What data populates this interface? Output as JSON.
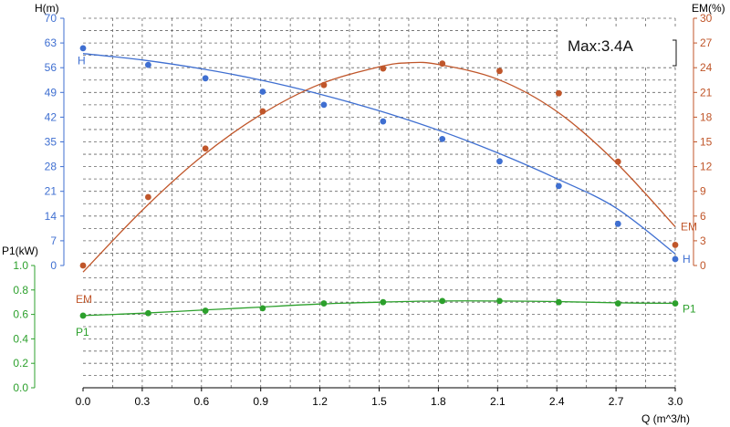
{
  "chart_data": {
    "type": "line",
    "annotation": "Max:3.4A",
    "grid": true,
    "x_axis": {
      "label": "Q (m^3/h)",
      "min": 0,
      "max": 3.0,
      "ticks": [
        "0.0",
        "0.3",
        "0.6",
        "0.9",
        "1.2",
        "1.5",
        "1.8",
        "2.1",
        "2.4",
        "2.7",
        "3.0"
      ],
      "color": "#000000"
    },
    "y_axes": {
      "H": {
        "label": "H(m)",
        "min": 0,
        "max": 70,
        "ticks": [
          "0",
          "7",
          "14",
          "21",
          "28",
          "35",
          "42",
          "49",
          "56",
          "63",
          "70"
        ],
        "color": "#3f6fd1"
      },
      "EM": {
        "label": "EM(%)",
        "min": 0,
        "max": 30,
        "ticks": [
          "0",
          "3",
          "6",
          "9",
          "12",
          "15",
          "18",
          "21",
          "24",
          "27",
          "30"
        ],
        "color": "#c0562a"
      },
      "P1": {
        "label": "P1(kW)",
        "min": 0,
        "max": 1.0,
        "ticks": [
          "0.0",
          "0.2",
          "0.4",
          "0.6",
          "0.8",
          "1.0"
        ],
        "color": "#2ca02c"
      }
    },
    "series": [
      {
        "name": "H",
        "axis": "H",
        "color": "#3f6fd1",
        "points": [
          [
            0.0,
            61.5
          ],
          [
            0.33,
            56.8
          ],
          [
            0.62,
            53.0
          ],
          [
            0.91,
            49.2
          ],
          [
            1.22,
            45.5
          ],
          [
            1.52,
            40.8
          ],
          [
            1.82,
            35.8
          ],
          [
            2.11,
            29.5
          ],
          [
            2.41,
            22.5
          ],
          [
            2.71,
            11.8
          ],
          [
            3.0,
            1.8
          ]
        ],
        "curve": [
          [
            0.0,
            60.0
          ],
          [
            0.3,
            58.2
          ],
          [
            0.6,
            55.7
          ],
          [
            0.9,
            52.5
          ],
          [
            1.2,
            48.5
          ],
          [
            1.5,
            43.8
          ],
          [
            1.8,
            38.3
          ],
          [
            2.1,
            31.9
          ],
          [
            2.4,
            24.6
          ],
          [
            2.7,
            16.3
          ],
          [
            3.0,
            3.3
          ]
        ]
      },
      {
        "name": "EM",
        "axis": "EM",
        "color": "#c0562a",
        "points": [
          [
            0.0,
            0.0
          ],
          [
            0.33,
            8.3
          ],
          [
            0.62,
            14.2
          ],
          [
            0.91,
            18.7
          ],
          [
            1.22,
            21.9
          ],
          [
            1.52,
            23.9
          ],
          [
            1.82,
            24.5
          ],
          [
            2.11,
            23.6
          ],
          [
            2.41,
            20.9
          ],
          [
            2.71,
            12.6
          ],
          [
            3.0,
            2.5
          ]
        ],
        "curve": [
          [
            0.0,
            -0.8
          ],
          [
            0.3,
            6.7
          ],
          [
            0.6,
            13.2
          ],
          [
            0.9,
            18.3
          ],
          [
            1.2,
            22.0
          ],
          [
            1.5,
            24.1
          ],
          [
            1.65,
            24.6
          ],
          [
            1.8,
            24.4
          ],
          [
            2.1,
            22.6
          ],
          [
            2.4,
            18.7
          ],
          [
            2.7,
            12.5
          ],
          [
            3.0,
            4.7
          ]
        ]
      },
      {
        "name": "P1",
        "axis": "P1",
        "color": "#2ca02c",
        "points": [
          [
            0.0,
            0.59
          ],
          [
            0.33,
            0.61
          ],
          [
            0.62,
            0.63
          ],
          [
            0.91,
            0.65
          ],
          [
            1.22,
            0.69
          ],
          [
            1.52,
            0.7
          ],
          [
            1.82,
            0.71
          ],
          [
            2.11,
            0.71
          ],
          [
            2.41,
            0.7
          ],
          [
            2.71,
            0.69
          ],
          [
            3.0,
            0.69
          ]
        ],
        "curve": [
          [
            0.0,
            0.59
          ],
          [
            0.3,
            0.61
          ],
          [
            0.6,
            0.635
          ],
          [
            0.9,
            0.66
          ],
          [
            1.2,
            0.685
          ],
          [
            1.5,
            0.7
          ],
          [
            1.8,
            0.71
          ],
          [
            2.1,
            0.71
          ],
          [
            2.4,
            0.705
          ],
          [
            2.7,
            0.695
          ],
          [
            3.0,
            0.69
          ]
        ]
      }
    ]
  }
}
